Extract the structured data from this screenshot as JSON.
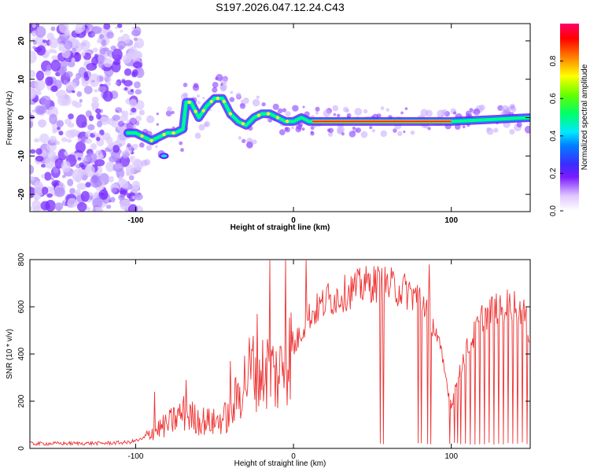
{
  "chart_data": [
    {
      "type": "heatmap",
      "title": "S197.2026.047.12.24.C43",
      "xlabel": "Height of straight line (km)",
      "ylabel": "Frequency (Hz)",
      "xlim": [
        -167,
        150
      ],
      "ylim": [
        -24.5,
        24.5
      ],
      "xticks": [
        -100,
        0,
        100
      ],
      "xtick_labels": [
        "-100",
        "0",
        "100"
      ],
      "yticks": [
        -20,
        -10,
        0,
        10,
        20
      ],
      "ytick_labels": [
        "-20",
        "-10",
        "0",
        "10",
        "20"
      ],
      "colorbar": {
        "label": "Normalized spectral amplitude",
        "range": [
          0,
          1
        ],
        "ticks": [
          0,
          0.2,
          0.4,
          0.6,
          0.8
        ],
        "tick_labels": [
          "0.0",
          "0.2",
          "0.4",
          "0.6",
          "0.8"
        ]
      },
      "ridge": {
        "x": [
          -105,
          -100,
          -95,
          -90,
          -85,
          -80,
          -75,
          -70,
          -68,
          -65,
          -60,
          -55,
          -50,
          -45,
          -40,
          -35,
          -30,
          -25,
          -20,
          -15,
          -10,
          -5,
          0,
          5,
          10,
          50,
          100,
          150
        ],
        "y": [
          -4,
          -4,
          -5,
          -6,
          -5,
          -4,
          -4,
          -3,
          4,
          4,
          0,
          3,
          5,
          5,
          1,
          -1,
          -2,
          0,
          1,
          1,
          0,
          -1,
          -1,
          0,
          -1,
          -1,
          -1,
          0
        ]
      }
    },
    {
      "type": "line",
      "xlabel": "Height of straight line (km)",
      "ylabel": "SNR (10 * v/v)",
      "xlim": [
        -167,
        150
      ],
      "ylim": [
        0,
        800
      ],
      "xticks": [
        -100,
        0,
        100
      ],
      "xtick_labels": [
        "-100",
        "0",
        "100"
      ],
      "yticks": [
        0,
        200,
        400,
        600,
        800
      ],
      "ytick_labels": [
        "0",
        "200",
        "400",
        "600",
        "800"
      ],
      "color": "#ee3333",
      "envelope": {
        "x": [
          -167,
          -120,
          -105,
          -95,
          -90,
          -80,
          -70,
          -60,
          -50,
          -40,
          -35,
          -30,
          -25,
          -20,
          -15,
          -10,
          -5,
          0,
          5,
          10,
          20,
          30,
          40,
          50,
          60,
          70,
          80,
          85,
          90,
          95,
          98,
          100,
          105,
          110,
          120,
          130,
          140,
          145,
          150
        ],
        "y": [
          20,
          22,
          25,
          40,
          70,
          100,
          150,
          120,
          110,
          140,
          230,
          300,
          350,
          320,
          340,
          300,
          380,
          420,
          500,
          560,
          620,
          650,
          680,
          700,
          690,
          670,
          640,
          600,
          500,
          350,
          250,
          180,
          330,
          420,
          560,
          600,
          610,
          590,
          480
        ]
      },
      "spikes": [
        {
          "x": -88,
          "y": 240
        },
        {
          "x": -68,
          "y": 290
        },
        {
          "x": -40,
          "y": 370
        },
        {
          "x": -23,
          "y": 570
        },
        {
          "x": -15,
          "y": 800
        },
        {
          "x": -5,
          "y": 800
        },
        {
          "x": 8,
          "y": 800
        },
        {
          "x": 22,
          "y": 700
        },
        {
          "x": 86,
          "y": 780
        },
        {
          "x": 45,
          "y": 740
        },
        {
          "x": 145,
          "y": 720
        }
      ],
      "dropouts": [
        55,
        57,
        79,
        81,
        85,
        87,
        99,
        102,
        104,
        106,
        109,
        112,
        115,
        118,
        121,
        124,
        127,
        130,
        133,
        136,
        139,
        142,
        145,
        148
      ]
    }
  ]
}
